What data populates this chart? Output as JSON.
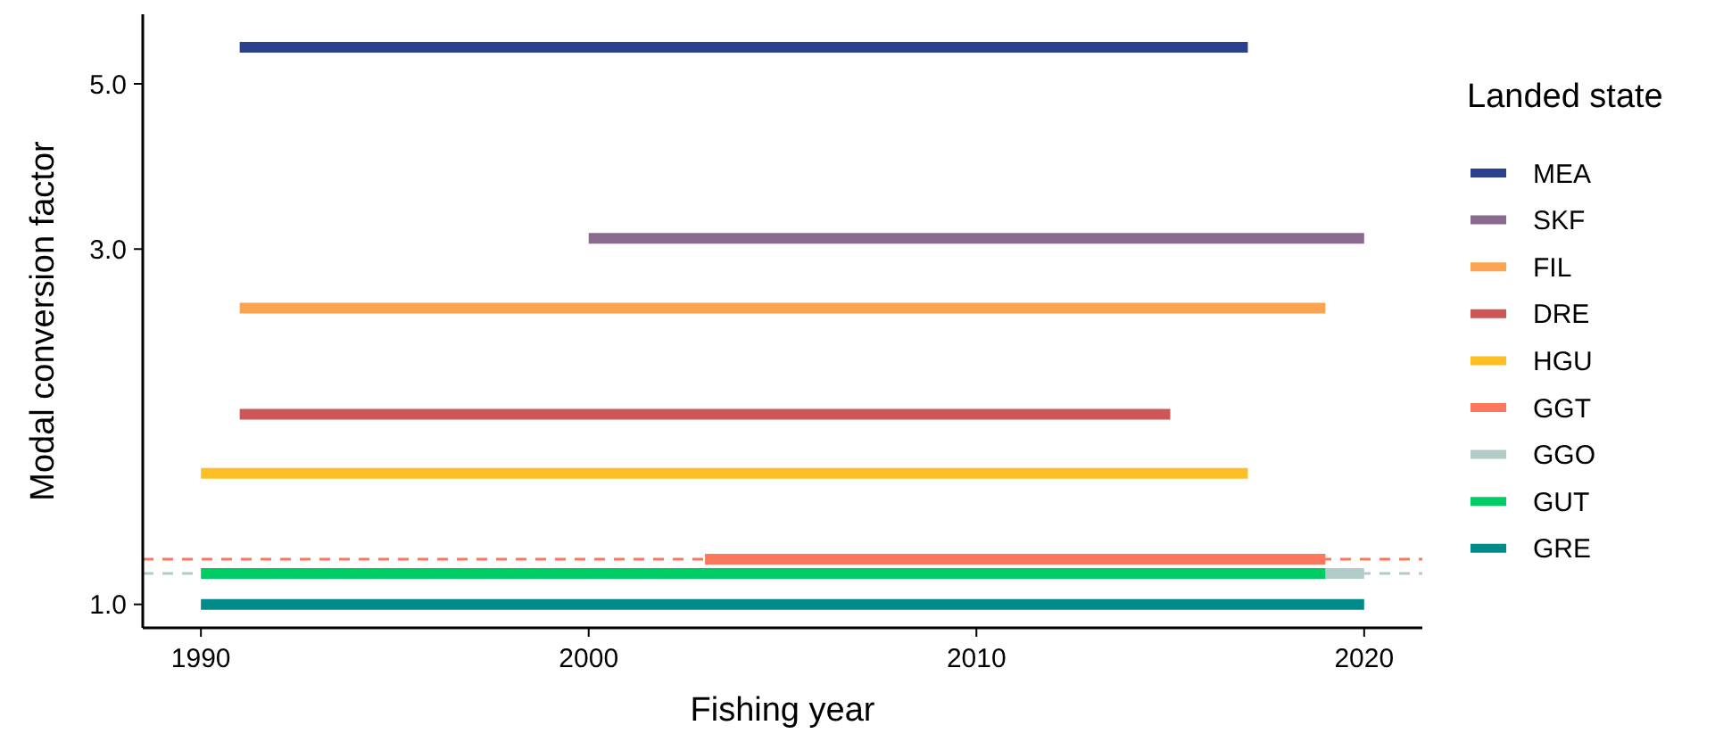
{
  "chart_data": {
    "type": "line",
    "xlabel": "Fishing year",
    "ylabel": "Modal conversion factor",
    "legend_title": "Landed state",
    "log": "y",
    "xlim": [
      1988.5,
      2021.5
    ],
    "xticks": [
      1990,
      2000,
      2010,
      2020
    ],
    "ylim": [
      0.93,
      6.2
    ],
    "yticks": [
      {
        "value": 1,
        "label": "1.0"
      },
      {
        "value": 3,
        "label": "3.0"
      },
      {
        "value": 5,
        "label": "5.0"
      }
    ],
    "grid": false,
    "legend": "right",
    "marker": "none",
    "line_style": "solid",
    "series": [
      {
        "name": "MEA",
        "color": "#2b4190",
        "x": [
          1991,
          2017
        ],
        "values": [
          5.6,
          5.6
        ]
      },
      {
        "name": "SKF",
        "color": "#8a6a8e",
        "x": [
          2000,
          2020
        ],
        "values": [
          3.1,
          3.1
        ]
      },
      {
        "name": "FIL",
        "color": "#fca352",
        "x": [
          1991,
          2019
        ],
        "values": [
          2.5,
          2.5
        ]
      },
      {
        "name": "DRE",
        "color": "#cd5757",
        "x": [
          1991,
          2015
        ],
        "values": [
          1.8,
          1.8
        ]
      },
      {
        "name": "HGU",
        "color": "#fdbf24",
        "x": [
          1990,
          2017
        ],
        "values": [
          1.5,
          1.5
        ]
      },
      {
        "name": "GGT",
        "color": "#fd775c",
        "x": [
          2003,
          2019
        ],
        "values": [
          1.15,
          1.15
        ]
      },
      {
        "name": "GGO",
        "color": "#b0cbc8",
        "x": [
          2019,
          2020
        ],
        "values": [
          1.1,
          1.1
        ]
      },
      {
        "name": "GUT",
        "color": "#00cc66",
        "x": [
          1990,
          2019
        ],
        "values": [
          1.1,
          1.1
        ]
      },
      {
        "name": "GRE",
        "color": "#008a8a",
        "x": [
          1990,
          2020
        ],
        "values": [
          1.0,
          1.0
        ]
      }
    ],
    "ref_lines": [
      {
        "axis": "y",
        "value": 1.15,
        "color": "#fd775c",
        "line_style": "dashed"
      },
      {
        "axis": "y",
        "value": 1.1,
        "color": "#b0cbc8",
        "line_style": "dashed"
      }
    ]
  }
}
